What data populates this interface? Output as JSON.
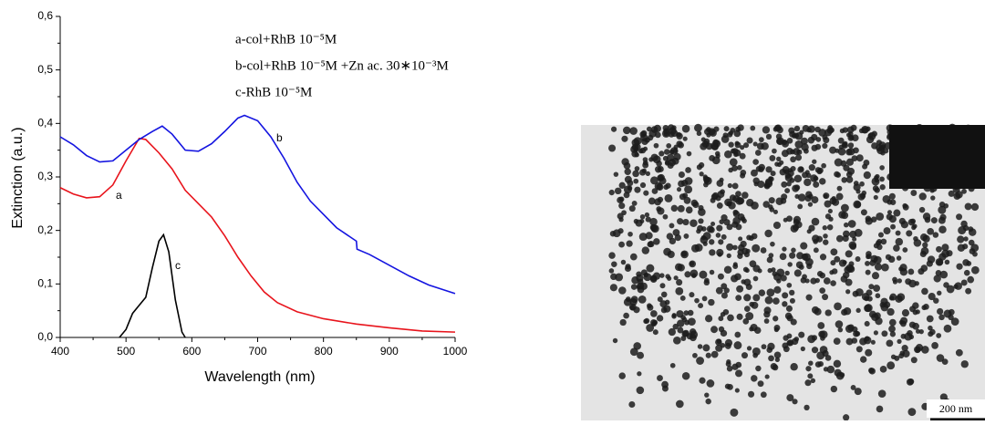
{
  "chart_data": {
    "type": "line",
    "x_label": "Wavelength (nm)",
    "y_label": "Extinction (a.u.)",
    "annotations": [
      "a-col+RhB 10⁻⁵M",
      "b-col+RhB 10⁻⁵M +Zn ac. 30∗10⁻³M",
      "c-RhB 10⁻⁵M"
    ],
    "xlim": [
      400,
      1000
    ],
    "xticks": [
      400,
      500,
      600,
      700,
      800,
      900,
      1000
    ],
    "ylim": [
      0,
      0.6
    ],
    "yticks": [
      {
        "value": 0,
        "label": "0,0"
      },
      {
        "value": 0.1,
        "label": "0,1"
      },
      {
        "value": 0.2,
        "label": "0,2"
      },
      {
        "value": 0.3,
        "label": "0,3"
      },
      {
        "value": 0.4,
        "label": "0,4"
      },
      {
        "value": 0.5,
        "label": "0,5"
      },
      {
        "value": 0.6,
        "label": "0,6"
      }
    ],
    "series": [
      {
        "name": "a",
        "color": "#e8141c",
        "x": [
          400,
          420,
          440,
          460,
          480,
          500,
          520,
          530,
          550,
          570,
          590,
          610,
          630,
          650,
          670,
          690,
          710,
          730,
          760,
          800,
          850,
          900,
          950,
          1000
        ],
        "values": [
          0.28,
          0.268,
          0.261,
          0.263,
          0.285,
          0.33,
          0.372,
          0.37,
          0.345,
          0.315,
          0.275,
          0.25,
          0.225,
          0.19,
          0.15,
          0.115,
          0.085,
          0.065,
          0.048,
          0.035,
          0.025,
          0.018,
          0.012,
          0.01
        ]
      },
      {
        "name": "b",
        "color": "#1414e0",
        "x": [
          400,
          420,
          440,
          460,
          480,
          500,
          520,
          540,
          555,
          570,
          590,
          610,
          630,
          650,
          670,
          680,
          700,
          720,
          740,
          760,
          780,
          800,
          820,
          850,
          851,
          870,
          900,
          930,
          960,
          1000
        ],
        "values": [
          0.375,
          0.36,
          0.34,
          0.328,
          0.33,
          0.35,
          0.37,
          0.385,
          0.395,
          0.38,
          0.35,
          0.348,
          0.362,
          0.385,
          0.41,
          0.415,
          0.405,
          0.375,
          0.335,
          0.29,
          0.255,
          0.23,
          0.205,
          0.18,
          0.165,
          0.155,
          0.135,
          0.115,
          0.098,
          0.082
        ]
      },
      {
        "name": "c",
        "color": "#000000",
        "x": [
          490,
          500,
          510,
          520,
          530,
          540,
          550,
          557,
          565,
          575,
          585,
          590
        ],
        "values": [
          0,
          0.015,
          0.045,
          0.06,
          0.075,
          0.13,
          0.18,
          0.192,
          0.16,
          0.07,
          0.01,
          0
        ]
      }
    ]
  },
  "micrograph": {
    "scale_bar": "200 nm"
  }
}
